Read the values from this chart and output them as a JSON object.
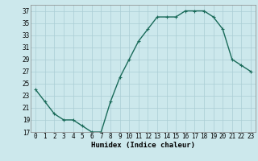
{
  "x": [
    0,
    1,
    2,
    3,
    4,
    5,
    6,
    7,
    8,
    9,
    10,
    11,
    12,
    13,
    14,
    15,
    16,
    17,
    18,
    19,
    20,
    21,
    22,
    23
  ],
  "y": [
    24,
    22,
    20,
    19,
    19,
    18,
    17,
    17,
    22,
    26,
    29,
    32,
    34,
    36,
    36,
    36,
    37,
    37,
    37,
    36,
    34,
    29,
    28,
    27
  ],
  "line_color": "#1a6b5a",
  "marker": "+",
  "marker_size": 3,
  "bg_color": "#cce8ec",
  "grid_color": "#aacdd4",
  "xlabel": "Humidex (Indice chaleur)",
  "ylim": [
    17,
    38
  ],
  "xlim": [
    -0.5,
    23.5
  ],
  "yticks": [
    17,
    19,
    21,
    23,
    25,
    27,
    29,
    31,
    33,
    35,
    37
  ],
  "xticks": [
    0,
    1,
    2,
    3,
    4,
    5,
    6,
    7,
    8,
    9,
    10,
    11,
    12,
    13,
    14,
    15,
    16,
    17,
    18,
    19,
    20,
    21,
    22,
    23
  ],
  "xlabel_fontsize": 6.5,
  "tick_fontsize": 5.5,
  "line_width": 1.0,
  "marker_edge_width": 0.8
}
